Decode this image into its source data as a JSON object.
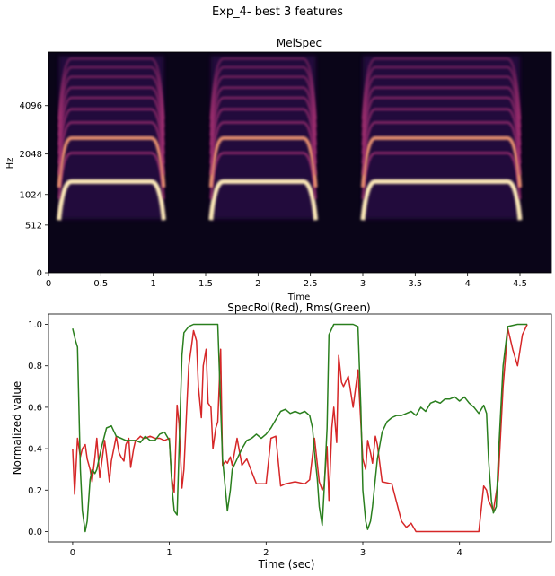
{
  "figure": {
    "suptitle": "Exp_4- best 3 features"
  },
  "chart_data": [
    {
      "type": "heatmap",
      "title": "MelSpec",
      "xlabel": "Time",
      "ylabel": "Hz",
      "xlim": [
        0,
        4.8
      ],
      "x_ticks": [
        "0",
        "0.5",
        "1",
        "1.5",
        "2",
        "2.5",
        "3",
        "3.5",
        "4",
        "4.5"
      ],
      "y_ticks": [
        "0",
        "512",
        "1024",
        "2048",
        "4096"
      ],
      "colormap": "magma",
      "colors": {
        "background": "#0a0518",
        "low": "#2a0f4a",
        "mid": "#b5367a",
        "high": "#fde9b8"
      },
      "segments": [
        {
          "start": 0.1,
          "end": 1.1,
          "fundamental_hz": 1300
        },
        {
          "start": 1.55,
          "end": 2.55,
          "fundamental_hz": 1300
        },
        {
          "start": 3.0,
          "end": 4.5,
          "fundamental_hz": 1300
        }
      ]
    },
    {
      "type": "line",
      "title": "SpecRol(Red), Rms(Green)",
      "xlabel": "Time (sec)",
      "ylabel": "Normalized value",
      "xlim": [
        -0.25,
        4.95
      ],
      "ylim": [
        -0.05,
        1.05
      ],
      "x_ticks": [
        "0",
        "1",
        "2",
        "3",
        "4"
      ],
      "y_ticks": [
        "0.0",
        "0.2",
        "0.4",
        "0.6",
        "0.8",
        "1.0"
      ],
      "series": [
        {
          "name": "SpecRol",
          "color": "#d62728",
          "x": [
            0,
            0.02,
            0.05,
            0.08,
            0.1,
            0.13,
            0.15,
            0.18,
            0.2,
            0.23,
            0.25,
            0.28,
            0.3,
            0.33,
            0.35,
            0.38,
            0.4,
            0.43,
            0.45,
            0.48,
            0.5,
            0.53,
            0.55,
            0.58,
            0.6,
            0.63,
            0.65,
            0.68,
            0.7,
            0.73,
            0.75,
            0.8,
            0.85,
            0.9,
            0.95,
            1.0,
            1.02,
            1.05,
            1.08,
            1.1,
            1.13,
            1.15,
            1.18,
            1.2,
            1.23,
            1.25,
            1.28,
            1.3,
            1.33,
            1.35,
            1.38,
            1.4,
            1.43,
            1.45,
            1.48,
            1.5,
            1.53,
            1.55,
            1.58,
            1.6,
            1.63,
            1.65,
            1.7,
            1.75,
            1.8,
            1.9,
            2.0,
            2.05,
            2.1,
            2.15,
            2.2,
            2.3,
            2.4,
            2.45,
            2.5,
            2.55,
            2.58,
            2.6,
            2.63,
            2.65,
            2.68,
            2.7,
            2.73,
            2.75,
            2.78,
            2.8,
            2.85,
            2.9,
            2.95,
            3.0,
            3.03,
            3.05,
            3.08,
            3.1,
            3.13,
            3.15,
            3.2,
            3.3,
            3.4,
            3.45,
            3.5,
            3.55,
            3.6,
            3.7,
            3.8,
            3.9,
            4.0,
            4.1,
            4.2,
            4.25,
            4.28,
            4.3,
            4.35,
            4.4,
            4.45,
            4.5,
            4.55,
            4.6,
            4.65,
            4.7
          ],
          "y": [
            0.4,
            0.18,
            0.45,
            0.36,
            0.4,
            0.42,
            0.35,
            0.3,
            0.24,
            0.36,
            0.45,
            0.26,
            0.33,
            0.44,
            0.37,
            0.24,
            0.34,
            0.41,
            0.46,
            0.38,
            0.36,
            0.34,
            0.42,
            0.45,
            0.31,
            0.4,
            0.44,
            0.45,
            0.46,
            0.45,
            0.45,
            0.46,
            0.45,
            0.45,
            0.44,
            0.45,
            0.27,
            0.19,
            0.61,
            0.52,
            0.21,
            0.3,
            0.6,
            0.8,
            0.9,
            0.97,
            0.92,
            0.7,
            0.55,
            0.8,
            0.88,
            0.62,
            0.6,
            0.4,
            0.5,
            0.53,
            0.88,
            0.32,
            0.34,
            0.33,
            0.36,
            0.32,
            0.45,
            0.32,
            0.35,
            0.23,
            0.23,
            0.45,
            0.46,
            0.22,
            0.23,
            0.24,
            0.23,
            0.25,
            0.45,
            0.24,
            0.2,
            0.22,
            0.41,
            0.15,
            0.5,
            0.6,
            0.43,
            0.85,
            0.72,
            0.7,
            0.75,
            0.6,
            0.78,
            0.35,
            0.3,
            0.44,
            0.38,
            0.33,
            0.46,
            0.42,
            0.24,
            0.23,
            0.05,
            0.02,
            0.04,
            0.0,
            0.0,
            0.0,
            0.0,
            0.0,
            0.0,
            0.0,
            0.0,
            0.22,
            0.2,
            0.15,
            0.1,
            0.25,
            0.7,
            0.98,
            0.88,
            0.8,
            0.95,
            1.0
          ]
        },
        {
          "name": "Rms",
          "color": "#2a7f1e",
          "x": [
            0,
            0.03,
            0.05,
            0.08,
            0.1,
            0.13,
            0.15,
            0.18,
            0.2,
            0.23,
            0.25,
            0.3,
            0.35,
            0.4,
            0.45,
            0.5,
            0.55,
            0.6,
            0.65,
            0.7,
            0.75,
            0.8,
            0.85,
            0.9,
            0.95,
            1.0,
            1.03,
            1.05,
            1.08,
            1.1,
            1.13,
            1.15,
            1.2,
            1.25,
            1.3,
            1.4,
            1.5,
            1.53,
            1.55,
            1.58,
            1.6,
            1.63,
            1.65,
            1.7,
            1.75,
            1.8,
            1.85,
            1.9,
            1.95,
            2.0,
            2.05,
            2.1,
            2.15,
            2.2,
            2.25,
            2.3,
            2.35,
            2.4,
            2.45,
            2.48,
            2.5,
            2.53,
            2.55,
            2.58,
            2.6,
            2.63,
            2.65,
            2.7,
            2.8,
            2.9,
            2.95,
            2.98,
            3.0,
            3.03,
            3.05,
            3.08,
            3.1,
            3.15,
            3.2,
            3.25,
            3.3,
            3.35,
            3.4,
            3.45,
            3.5,
            3.55,
            3.6,
            3.65,
            3.7,
            3.75,
            3.8,
            3.85,
            3.9,
            3.95,
            4.0,
            4.05,
            4.1,
            4.15,
            4.2,
            4.25,
            4.28,
            4.3,
            4.33,
            4.35,
            4.38,
            4.4,
            4.45,
            4.5,
            4.6,
            4.7
          ],
          "y": [
            0.98,
            0.92,
            0.89,
            0.3,
            0.1,
            0.0,
            0.05,
            0.25,
            0.3,
            0.28,
            0.3,
            0.41,
            0.5,
            0.51,
            0.46,
            0.45,
            0.44,
            0.44,
            0.44,
            0.43,
            0.46,
            0.44,
            0.44,
            0.47,
            0.48,
            0.44,
            0.2,
            0.1,
            0.08,
            0.4,
            0.85,
            0.96,
            0.99,
            1.0,
            1.0,
            1.0,
            1.0,
            0.6,
            0.35,
            0.2,
            0.1,
            0.2,
            0.3,
            0.35,
            0.4,
            0.44,
            0.45,
            0.47,
            0.45,
            0.47,
            0.5,
            0.54,
            0.58,
            0.59,
            0.57,
            0.58,
            0.57,
            0.58,
            0.56,
            0.5,
            0.38,
            0.25,
            0.12,
            0.03,
            0.2,
            0.5,
            0.95,
            1.0,
            1.0,
            1.0,
            0.99,
            0.6,
            0.2,
            0.05,
            0.01,
            0.05,
            0.12,
            0.35,
            0.48,
            0.53,
            0.55,
            0.56,
            0.56,
            0.57,
            0.58,
            0.56,
            0.6,
            0.58,
            0.62,
            0.63,
            0.62,
            0.64,
            0.64,
            0.65,
            0.63,
            0.65,
            0.62,
            0.6,
            0.57,
            0.61,
            0.57,
            0.35,
            0.15,
            0.09,
            0.12,
            0.35,
            0.8,
            0.99,
            1.0,
            1.0
          ]
        }
      ]
    }
  ]
}
